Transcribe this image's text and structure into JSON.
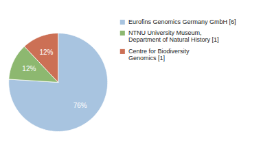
{
  "chart_data": {
    "type": "pie",
    "categories": [
      "Eurofins Genomics Germany GmbH [6]",
      "NTNU University Museum,\nDepartment of Natural History [1]",
      "Centre for Biodiversity\nGenomics [1]"
    ],
    "values": [
      76,
      12,
      12
    ],
    "value_labels": [
      "76%",
      "12%",
      "12%"
    ],
    "colors": [
      "#a8c4e0",
      "#8db870",
      "#cc7055"
    ],
    "data_labels": true,
    "legend": "right"
  }
}
